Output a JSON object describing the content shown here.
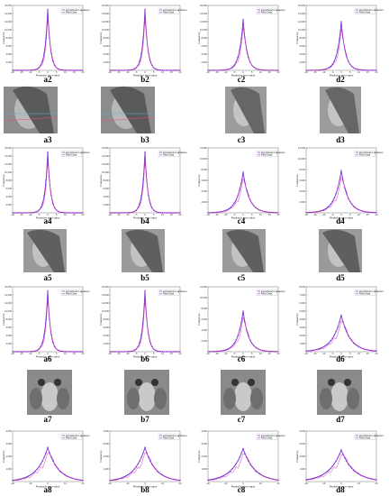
{
  "figure": {
    "panel_labels": {
      "a2": "a2",
      "b2": "b2",
      "c2": "c2",
      "d2": "d2",
      "a3": "a3",
      "b3": "b3",
      "c3": "c3",
      "d3": "d3",
      "a4": "a4",
      "b4": "b4",
      "c4": "c4",
      "d4": "d4",
      "a5": "a5",
      "b5": "b5",
      "c5": "c5",
      "d5": "d5",
      "a6": "a6",
      "b6": "b6",
      "c6": "c6",
      "d6": "d6",
      "a7": "a7",
      "b7": "b7",
      "c7": "c7",
      "d7": "d7",
      "a8": "a8",
      "b8": "b8",
      "c8": "c8",
      "d8": "d8"
    },
    "colors": {
      "fit": "#7a2fd8",
      "real": "#d23aa8",
      "image_bg": "#9a9a9a"
    }
  },
  "chart_data": [
    {
      "id": "a2",
      "type": "line",
      "ylabel": "Frequency",
      "xlabel": "Prediction error value",
      "ylim": [
        0,
        16000
      ],
      "yticks": [
        "2,000",
        "4,000",
        "6,000",
        "8,000",
        "10,000",
        "12,000",
        "14,000",
        "16,000"
      ],
      "xticks": [
        "-20",
        "-15",
        "-10",
        "-5",
        "0",
        "5",
        "10",
        "15",
        "20"
      ],
      "legend": [
        "Hypothesis Laplacian",
        "Real Data"
      ],
      "peak": 15000,
      "width": 1.6
    },
    {
      "id": "b2",
      "type": "line",
      "ylabel": "Frequency",
      "xlabel": "Prediction error value",
      "ylim": [
        0,
        16000
      ],
      "yticks": [
        "2,000",
        "4,000",
        "6,000",
        "8,000",
        "10,000",
        "12,000",
        "14,000",
        "16,000"
      ],
      "xticks": [
        "-20",
        "-15",
        "-10",
        "-5",
        "0",
        "5",
        "10",
        "15",
        "20"
      ],
      "legend": [
        "Hypothesis Laplacian",
        "Real Data"
      ],
      "peak": 15000,
      "width": 1.6
    },
    {
      "id": "c2",
      "type": "line",
      "ylabel": "Frequency",
      "xlabel": "Prediction error value",
      "ylim": [
        0,
        16000
      ],
      "yticks": [
        "2,000",
        "4,000",
        "6,000",
        "8,000",
        "10,000",
        "12,000",
        "14,000",
        "16,000"
      ],
      "xticks": [
        "-20",
        "-15",
        "-10",
        "-5",
        "0",
        "5",
        "10",
        "15",
        "20"
      ],
      "legend": [
        "Hypothesis Laplacian",
        "Real Data"
      ],
      "peak": 12500,
      "width": 2.2
    },
    {
      "id": "d2",
      "type": "line",
      "ylabel": "Frequency",
      "xlabel": "Prediction error value",
      "ylim": [
        0,
        16000
      ],
      "yticks": [
        "2,000",
        "4,000",
        "6,000",
        "8,000",
        "10,000",
        "12,000",
        "14,000",
        "16,000"
      ],
      "xticks": [
        "-20",
        "-15",
        "-10",
        "-5",
        "0",
        "5",
        "10",
        "15",
        "20"
      ],
      "legend": [
        "Hypothesis Laplacian",
        "Real Data"
      ],
      "peak": 12000,
      "width": 2.4
    },
    {
      "id": "a4",
      "type": "line",
      "ylabel": "Frequency",
      "xlabel": "Prediction error value",
      "ylim": [
        0,
        16000
      ],
      "yticks": [
        "2,000",
        "4,000",
        "6,000",
        "8,000",
        "10,000",
        "12,000",
        "14,000",
        "16,000"
      ],
      "xticks": [
        "-20",
        "-15",
        "-10",
        "-5",
        "0",
        "5",
        "10",
        "15",
        "20"
      ],
      "legend": [
        "Hypothesis Laplacian",
        "Real Data"
      ],
      "peak": 15000,
      "width": 1.6
    },
    {
      "id": "b4",
      "type": "line",
      "ylabel": "Frequency",
      "xlabel": "Prediction error value",
      "ylim": [
        0,
        16000
      ],
      "yticks": [
        "2,000",
        "4,000",
        "6,000",
        "8,000",
        "10,000",
        "12,000",
        "14,000",
        "16,000"
      ],
      "xticks": [
        "-20",
        "-15",
        "-10",
        "-5",
        "0",
        "5",
        "10",
        "15",
        "20"
      ],
      "legend": [
        "Hypothesis Laplacian",
        "Real Data"
      ],
      "peak": 15000,
      "width": 1.6
    },
    {
      "id": "c4",
      "type": "line",
      "ylabel": "Frequency",
      "xlabel": "Prediction error value",
      "ylim": [
        0,
        12000
      ],
      "yticks": [
        "2,000",
        "4,000",
        "6,000",
        "8,000",
        "10,000",
        "12,000"
      ],
      "xticks": [
        "-20",
        "-15",
        "-10",
        "-5",
        "0",
        "5",
        "10",
        "15",
        "20"
      ],
      "legend": [
        "Hypothesis Laplacian",
        "Real Data"
      ],
      "peak": 7500,
      "width": 3.5
    },
    {
      "id": "d4",
      "type": "line",
      "ylabel": "Frequency",
      "xlabel": "Prediction error value",
      "ylim": [
        0,
        12000
      ],
      "yticks": [
        "2,000",
        "4,000",
        "6,000",
        "8,000",
        "10,000",
        "12,000"
      ],
      "xticks": [
        "-20",
        "-15",
        "-10",
        "-5",
        "0",
        "5",
        "10",
        "15",
        "20"
      ],
      "legend": [
        "Hypothesis Laplacian",
        "Real Data"
      ],
      "peak": 7800,
      "width": 3.8
    },
    {
      "id": "a6",
      "type": "line",
      "ylabel": "Frequency",
      "xlabel": "Prediction error value",
      "ylim": [
        0,
        16000
      ],
      "yticks": [
        "2,000",
        "4,000",
        "6,000",
        "8,000",
        "10,000",
        "12,000",
        "14,000",
        "16,000"
      ],
      "xticks": [
        "-20",
        "-15",
        "-10",
        "-5",
        "0",
        "5",
        "10",
        "15",
        "20"
      ],
      "legend": [
        "Hypothesis Laplacian",
        "Real Data"
      ],
      "peak": 15000,
      "width": 1.6
    },
    {
      "id": "b6",
      "type": "line",
      "ylabel": "Frequency",
      "xlabel": "Prediction error value",
      "ylim": [
        0,
        16000
      ],
      "yticks": [
        "2,000",
        "4,000",
        "6,000",
        "8,000",
        "10,000",
        "12,000",
        "14,000",
        "16,000"
      ],
      "xticks": [
        "-20",
        "-15",
        "-10",
        "-5",
        "0",
        "5",
        "10",
        "15",
        "20"
      ],
      "legend": [
        "Hypothesis Laplacian",
        "Real Data"
      ],
      "peak": 15000,
      "width": 1.6
    },
    {
      "id": "c6",
      "type": "line",
      "ylabel": "Frequency",
      "xlabel": "Prediction error value",
      "ylim": [
        0,
        12000
      ],
      "yticks": [
        "2,000",
        "4,000",
        "6,000",
        "8,000",
        "10,000",
        "12,000"
      ],
      "xticks": [
        "-20",
        "-15",
        "-10",
        "-5",
        "0",
        "5",
        "10",
        "15",
        "20"
      ],
      "legend": [
        "Hypothesis Laplacian",
        "Real Data"
      ],
      "peak": 7500,
      "width": 3.2
    },
    {
      "id": "d6",
      "type": "line",
      "ylabel": "Frequency",
      "xlabel": "Prediction error value",
      "ylim": [
        0,
        8000
      ],
      "yticks": [
        "1,000",
        "2,000",
        "3,000",
        "4,000",
        "5,000",
        "6,000",
        "7,000",
        "8,000"
      ],
      "xticks": [
        "-20",
        "-15",
        "-10",
        "-5",
        "0",
        "5",
        "10",
        "15",
        "20"
      ],
      "legend": [
        "Hypothesis Laplacian",
        "Real Data"
      ],
      "peak": 4500,
      "width": 5.0
    },
    {
      "id": "a8",
      "type": "line",
      "ylabel": "Frequency",
      "xlabel": "Prediction error value",
      "ylim": [
        0,
        4000
      ],
      "yticks": [
        "1,000",
        "2,000",
        "3,000",
        "4,000"
      ],
      "xticks": [
        "-20",
        "-10",
        "0",
        "10",
        "20"
      ],
      "legend": [
        "Hypothesis Laplacian",
        "Real Data"
      ],
      "peak": 2700,
      "width": 6.0
    },
    {
      "id": "b8",
      "type": "line",
      "ylabel": "Frequency",
      "xlabel": "Prediction error value",
      "ylim": [
        0,
        4000
      ],
      "yticks": [
        "1,000",
        "2,000",
        "3,000",
        "4,000"
      ],
      "xticks": [
        "-20",
        "-10",
        "0",
        "10",
        "20"
      ],
      "legend": [
        "Hypothesis Laplacian",
        "Real Data"
      ],
      "peak": 2700,
      "width": 6.0
    },
    {
      "id": "c8",
      "type": "line",
      "ylabel": "Frequency",
      "xlabel": "Prediction error value",
      "ylim": [
        0,
        4000
      ],
      "yticks": [
        "1,000",
        "2,000",
        "3,000",
        "4,000"
      ],
      "xticks": [
        "-20",
        "-10",
        "0",
        "10",
        "20"
      ],
      "legend": [
        "Hypothesis Laplacian",
        "Real Data"
      ],
      "peak": 2600,
      "width": 6.5
    },
    {
      "id": "d8",
      "type": "line",
      "ylabel": "Frequency",
      "xlabel": "Prediction error value",
      "ylim": [
        0,
        4000
      ],
      "yticks": [
        "1,000",
        "2,000",
        "3,000",
        "4,000"
      ],
      "xticks": [
        "-20",
        "-10",
        "0",
        "10",
        "20"
      ],
      "legend": [
        "Hypothesis Laplacian",
        "Real Data"
      ],
      "peak": 2500,
      "width": 7.0
    }
  ]
}
